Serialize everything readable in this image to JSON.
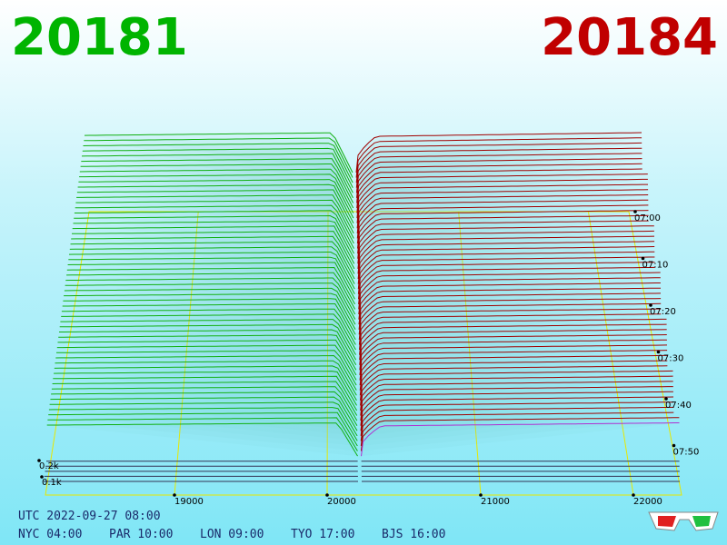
{
  "header": {
    "bid": "20181",
    "ask": "20184"
  },
  "axis": {
    "price_ticks": [
      "19000",
      "20000",
      "21000",
      "22000"
    ],
    "depth_ticks": [
      "0.2k",
      "0.1k"
    ],
    "time_ticks": [
      "07:00",
      "07:10",
      "07:20",
      "07:30",
      "07:40",
      "07:50"
    ]
  },
  "footer": {
    "utc": "UTC 2022-09-27 08:00",
    "zones": [
      "NYC 04:00",
      "PAR 10:00",
      "LON 09:00",
      "TYO 17:00",
      "BJS 16:00"
    ]
  }
}
